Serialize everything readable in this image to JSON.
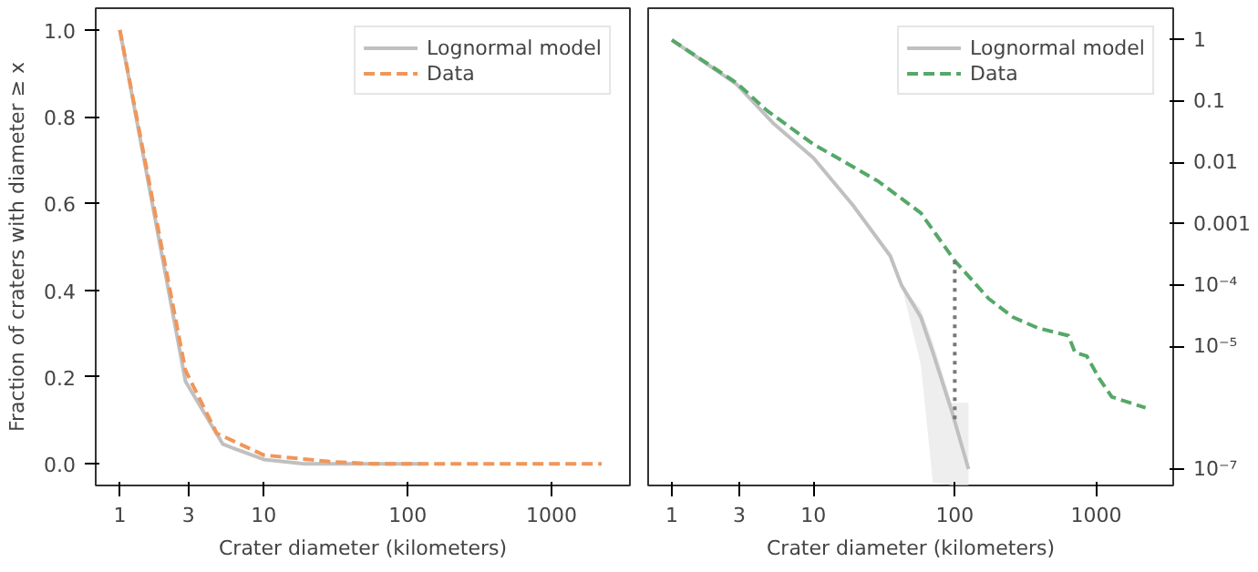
{
  "chart_data": [
    {
      "type": "line",
      "xlabel": "Crater diameter (kilometers)",
      "ylabel": "Fraction of craters with diameter ≥ x",
      "log": "x",
      "legend": "top right",
      "grid": false,
      "marker": "none",
      "xlim": [
        0.68,
        3500
      ],
      "xticks": [
        1,
        3,
        10,
        100,
        1000
      ],
      "ylim": [
        -0.05,
        1.05
      ],
      "yticks": [
        {
          "value": 0,
          "label": "0.0"
        },
        {
          "value": 0.2,
          "label": "0.2"
        },
        {
          "value": 0.4,
          "label": "0.4"
        },
        {
          "value": 0.6,
          "label": "0.6"
        },
        {
          "value": 0.8,
          "label": "0.8"
        },
        {
          "value": 1,
          "label": "1.0"
        }
      ],
      "series": [
        {
          "name": "Lognormal model",
          "color": "#c0c0c0",
          "line_style": "solid",
          "x": [
            1,
            2.86,
            5.2,
            10,
            19.1,
            35,
            57.6,
            95,
            125
          ],
          "values": [
            1,
            0.19,
            0.045,
            0.01,
            0,
            0,
            0,
            0,
            0
          ]
        },
        {
          "name": "Data",
          "color": "#f0965a",
          "line_style": "dashed",
          "x": [
            1,
            2.86,
            4.72,
            10,
            28.6,
            57.6,
            100,
            174,
            258,
            387,
            636,
            707,
            856,
            1050,
            1290,
            2230
          ],
          "values": [
            1,
            0.215,
            0.07,
            0.02,
            0.005,
            0,
            0,
            0,
            0,
            0,
            0,
            0,
            0,
            0,
            0,
            0
          ]
        }
      ]
    },
    {
      "type": "line",
      "xlabel": "Crater diameter (kilometers)",
      "log": "xy",
      "legend": "top right",
      "grid": false,
      "marker": "none",
      "xlim": [
        0.68,
        3500
      ],
      "xticks": [
        1,
        3,
        10,
        100,
        1000
      ],
      "ylim": [
        5.4e-08,
        3.3
      ],
      "yticks": [
        1,
        0.1,
        0.01,
        0.001,
        {
          "value": 0.0001,
          "label": "10⁻⁴"
        },
        {
          "value": 1e-05,
          "label": "10⁻⁵"
        },
        {
          "value": 1e-07,
          "label": "10⁻⁷"
        }
      ],
      "series": [
        {
          "name": "Lognormal model",
          "color": "#c0c0c0",
          "line_style": "solid",
          "x": [
            1,
            2.86,
            5.2,
            10,
            19.1,
            35,
            42,
            57.6,
            70,
            95,
            125
          ],
          "values": [
            1,
            0.19,
            0.044,
            0.012,
            0.002,
            0.0003,
            0.0001,
            3e-05,
            8e-06,
            9e-07,
            1e-07
          ],
          "lower": [
            null,
            null,
            null,
            null,
            null,
            null,
            0.0001,
            5e-06,
            6e-08,
            5.5e-08,
            5.5e-08
          ],
          "upper": [
            null,
            null,
            null,
            null,
            null,
            null,
            0.0001,
            4e-05,
            1.2e-05,
            1.2e-06,
            1.2e-06
          ]
        },
        {
          "name": "Data",
          "color": "#55a868",
          "line_style": "dashed",
          "x": [
            1,
            2.86,
            4.72,
            10,
            28.6,
            57.6,
            100,
            174,
            258,
            387,
            636,
            707,
            856,
            1050,
            1290,
            2230
          ],
          "values": [
            1,
            0.2,
            0.07,
            0.02,
            0.005,
            0.0015,
            0.00025,
            6e-05,
            3e-05,
            2e-05,
            1.5e-05,
            8e-06,
            7e-06,
            3e-06,
            1.5e-06,
            1e-06
          ]
        },
        {
          "color": "#777777",
          "line_style": "dotted",
          "x": [
            100,
            100
          ],
          "values": [
            0.00025,
            6e-07
          ]
        }
      ]
    }
  ]
}
